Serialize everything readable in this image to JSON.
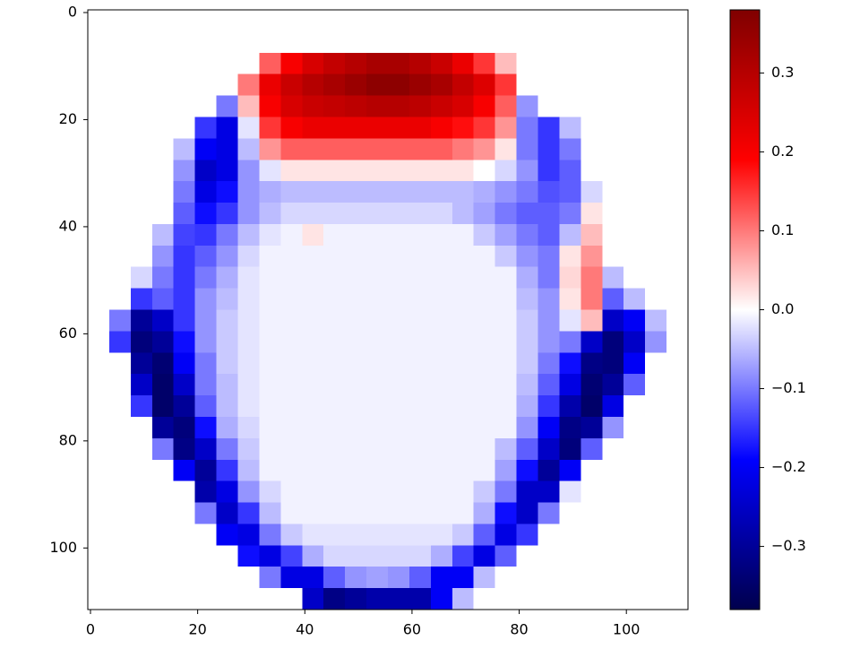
{
  "chart_data": {
    "type": "heatmap",
    "colormap": "seismic",
    "xlim": [
      -0.5,
      111.5
    ],
    "ylim": [
      111.5,
      -0.5
    ],
    "xticks": [
      0,
      20,
      40,
      60,
      80,
      100
    ],
    "yticks": [
      0,
      20,
      40,
      60,
      80,
      100
    ],
    "x_edges": [
      -0.5,
      3.5,
      7.5,
      11.5,
      15.5,
      19.5,
      23.5,
      27.5,
      31.5,
      35.5,
      39.5,
      43.5,
      47.5,
      51.5,
      55.5,
      59.5,
      63.5,
      67.5,
      71.5,
      75.5,
      79.5,
      83.5,
      87.5,
      91.5,
      95.5,
      99.5,
      103.5,
      107.5,
      111.5
    ],
    "y_edges": [
      -0.5,
      3.5,
      7.5,
      11.5,
      15.5,
      19.5,
      23.5,
      27.5,
      31.5,
      35.5,
      39.5,
      43.5,
      47.5,
      51.5,
      55.5,
      59.5,
      63.5,
      67.5,
      71.5,
      75.5,
      79.5,
      83.5,
      87.5,
      91.5,
      95.5,
      99.5,
      103.5,
      107.5,
      111.5
    ],
    "clim": [
      -0.38,
      0.38
    ],
    "colorbar_ticks": [
      {
        "value": -0.3,
        "label": "−0.3"
      },
      {
        "value": -0.2,
        "label": "−0.2"
      },
      {
        "value": -0.1,
        "label": "−0.1"
      },
      {
        "value": 0,
        "label": "0.0"
      },
      0.1,
      0.2,
      0.3
    ],
    "z": [
      [
        0,
        0,
        0,
        0,
        0,
        0,
        0,
        0,
        0,
        0,
        0,
        0,
        0,
        0,
        0,
        0,
        0,
        0,
        0,
        0,
        0,
        0,
        0,
        0,
        0,
        0,
        0,
        0
      ],
      [
        0,
        0,
        0,
        0,
        0,
        0,
        0,
        0,
        0,
        0,
        0,
        0,
        0,
        0,
        0,
        0,
        0,
        0,
        0,
        0,
        0,
        0,
        0,
        0,
        0,
        0,
        0,
        0
      ],
      [
        0,
        0,
        0,
        0,
        0,
        0,
        0,
        0,
        0.12,
        0.2,
        0.25,
        0.28,
        0.3,
        0.32,
        0.32,
        0.3,
        0.27,
        0.22,
        0.15,
        0.05,
        0,
        0,
        0,
        0,
        0,
        0,
        0,
        0
      ],
      [
        0,
        0,
        0,
        0,
        0,
        0,
        0,
        0.1,
        0.22,
        0.27,
        0.3,
        0.32,
        0.34,
        0.36,
        0.36,
        0.34,
        0.32,
        0.28,
        0.24,
        0.15,
        0,
        0,
        0,
        0,
        0,
        0,
        0,
        0
      ],
      [
        0,
        0,
        0,
        0,
        0,
        0,
        -0.1,
        0.05,
        0.2,
        0.25,
        0.27,
        0.28,
        0.29,
        0.3,
        0.3,
        0.29,
        0.27,
        0.25,
        0.2,
        0.12,
        -0.08,
        0,
        0,
        0,
        0,
        0,
        0,
        0
      ],
      [
        0,
        0,
        0,
        0,
        0,
        -0.15,
        -0.22,
        -0.02,
        0.15,
        0.2,
        0.22,
        0.22,
        0.22,
        0.22,
        0.22,
        0.22,
        0.2,
        0.18,
        0.15,
        0.08,
        -0.1,
        -0.15,
        -0.05,
        0,
        0,
        0,
        0,
        0
      ],
      [
        0,
        0,
        0,
        0,
        -0.05,
        -0.2,
        -0.22,
        -0.05,
        0.08,
        0.12,
        0.12,
        0.12,
        0.12,
        0.12,
        0.12,
        0.12,
        0.12,
        0.1,
        0.08,
        0.02,
        -0.1,
        -0.15,
        -0.1,
        0,
        0,
        0,
        0,
        0
      ],
      [
        0,
        0,
        0,
        0,
        -0.08,
        -0.25,
        -0.22,
        -0.08,
        -0.02,
        0.02,
        0.02,
        0.02,
        0.02,
        0.02,
        0.02,
        0.02,
        0.02,
        0.02,
        0,
        -0.03,
        -0.08,
        -0.15,
        -0.12,
        0,
        0,
        0,
        0,
        0
      ],
      [
        0,
        0,
        0,
        0,
        -0.1,
        -0.22,
        -0.18,
        -0.08,
        -0.06,
        -0.05,
        -0.05,
        -0.05,
        -0.05,
        -0.05,
        -0.05,
        -0.05,
        -0.05,
        -0.05,
        -0.06,
        -0.08,
        -0.1,
        -0.13,
        -0.12,
        -0.03,
        0,
        0,
        0,
        0
      ],
      [
        0,
        0,
        0,
        0,
        -0.12,
        -0.18,
        -0.15,
        -0.08,
        -0.05,
        -0.03,
        -0.03,
        -0.03,
        -0.03,
        -0.03,
        -0.03,
        -0.03,
        -0.03,
        -0.05,
        -0.07,
        -0.1,
        -0.12,
        -0.12,
        -0.1,
        0.02,
        0,
        0,
        0,
        0
      ],
      [
        0,
        0,
        0,
        -0.05,
        -0.14,
        -0.15,
        -0.1,
        -0.05,
        -0.02,
        -0.01,
        0.02,
        -0.01,
        -0.01,
        -0.01,
        -0.01,
        -0.01,
        -0.01,
        -0.01,
        -0.04,
        -0.07,
        -0.1,
        -0.12,
        -0.05,
        0.05,
        0,
        0,
        0,
        0
      ],
      [
        0,
        0,
        0,
        -0.08,
        -0.15,
        -0.12,
        -0.08,
        -0.03,
        -0.01,
        -0.01,
        -0.01,
        -0.01,
        -0.01,
        -0.01,
        -0.01,
        -0.01,
        -0.01,
        -0.01,
        -0.01,
        -0.04,
        -0.08,
        -0.1,
        0.02,
        0.08,
        0,
        0,
        0,
        0
      ],
      [
        0,
        0,
        -0.03,
        -0.1,
        -0.15,
        -0.1,
        -0.06,
        -0.02,
        -0.01,
        -0.01,
        -0.01,
        -0.01,
        -0.01,
        -0.01,
        -0.01,
        -0.01,
        -0.01,
        -0.01,
        -0.01,
        -0.01,
        -0.06,
        -0.1,
        0.03,
        0.1,
        -0.05,
        0,
        0,
        0
      ],
      [
        0,
        0,
        -0.15,
        -0.12,
        -0.15,
        -0.08,
        -0.05,
        -0.02,
        -0.01,
        -0.01,
        -0.01,
        -0.01,
        -0.01,
        -0.01,
        -0.01,
        -0.01,
        -0.01,
        -0.01,
        -0.01,
        -0.01,
        -0.05,
        -0.08,
        0.02,
        0.1,
        -0.12,
        -0.05,
        0,
        0
      ],
      [
        0,
        -0.1,
        -0.3,
        -0.25,
        -0.15,
        -0.08,
        -0.04,
        -0.02,
        -0.01,
        -0.01,
        -0.01,
        -0.01,
        -0.01,
        -0.01,
        -0.01,
        -0.01,
        -0.01,
        -0.01,
        -0.01,
        -0.01,
        -0.04,
        -0.08,
        -0.02,
        0.05,
        -0.25,
        -0.2,
        -0.05,
        0
      ],
      [
        0,
        -0.15,
        -0.33,
        -0.3,
        -0.18,
        -0.08,
        -0.04,
        -0.02,
        -0.01,
        -0.01,
        -0.01,
        -0.01,
        -0.01,
        -0.01,
        -0.01,
        -0.01,
        -0.01,
        -0.01,
        -0.01,
        -0.01,
        -0.04,
        -0.08,
        -0.1,
        -0.25,
        -0.33,
        -0.25,
        -0.08,
        0
      ],
      [
        0,
        0,
        -0.3,
        -0.34,
        -0.2,
        -0.1,
        -0.04,
        -0.02,
        -0.01,
        -0.01,
        -0.01,
        -0.01,
        -0.01,
        -0.01,
        -0.01,
        -0.01,
        -0.01,
        -0.01,
        -0.01,
        -0.01,
        -0.04,
        -0.1,
        -0.18,
        -0.32,
        -0.33,
        -0.2,
        0,
        0
      ],
      [
        0,
        0,
        -0.25,
        -0.35,
        -0.25,
        -0.1,
        -0.05,
        -0.02,
        -0.01,
        -0.01,
        -0.01,
        -0.01,
        -0.01,
        -0.01,
        -0.01,
        -0.01,
        -0.01,
        -0.01,
        -0.01,
        -0.01,
        -0.05,
        -0.12,
        -0.22,
        -0.34,
        -0.3,
        -0.12,
        0,
        0
      ],
      [
        0,
        0,
        -0.15,
        -0.35,
        -0.3,
        -0.12,
        -0.05,
        -0.02,
        -0.01,
        -0.01,
        -0.01,
        -0.01,
        -0.01,
        -0.01,
        -0.01,
        -0.01,
        -0.01,
        -0.01,
        -0.01,
        -0.01,
        -0.06,
        -0.15,
        -0.28,
        -0.35,
        -0.22,
        0,
        0,
        0
      ],
      [
        0,
        0,
        0,
        -0.3,
        -0.33,
        -0.18,
        -0.06,
        -0.03,
        -0.01,
        -0.01,
        -0.01,
        -0.01,
        -0.01,
        -0.01,
        -0.01,
        -0.01,
        -0.01,
        -0.01,
        -0.01,
        -0.01,
        -0.08,
        -0.2,
        -0.32,
        -0.3,
        -0.08,
        0,
        0,
        0
      ],
      [
        0,
        0,
        0,
        -0.1,
        -0.32,
        -0.25,
        -0.1,
        -0.04,
        -0.01,
        -0.01,
        -0.01,
        -0.01,
        -0.01,
        -0.01,
        -0.01,
        -0.01,
        -0.01,
        -0.01,
        -0.01,
        -0.05,
        -0.12,
        -0.25,
        -0.33,
        -0.12,
        0,
        0,
        0,
        0
      ],
      [
        0,
        0,
        0,
        0,
        -0.2,
        -0.3,
        -0.15,
        -0.05,
        -0.01,
        -0.01,
        -0.01,
        -0.01,
        -0.01,
        -0.01,
        -0.01,
        -0.01,
        -0.01,
        -0.01,
        -0.01,
        -0.07,
        -0.18,
        -0.3,
        -0.2,
        0,
        0,
        0,
        0,
        0
      ],
      [
        0,
        0,
        0,
        0,
        0,
        -0.28,
        -0.22,
        -0.08,
        -0.03,
        -0.01,
        -0.01,
        -0.01,
        -0.01,
        -0.01,
        -0.01,
        -0.01,
        -0.01,
        -0.01,
        -0.04,
        -0.1,
        -0.25,
        -0.25,
        -0.02,
        0,
        0,
        0,
        0,
        0
      ],
      [
        0,
        0,
        0,
        0,
        0,
        -0.1,
        -0.25,
        -0.15,
        -0.05,
        -0.01,
        -0.01,
        -0.01,
        -0.01,
        -0.01,
        -0.01,
        -0.01,
        -0.01,
        -0.01,
        -0.06,
        -0.18,
        -0.25,
        -0.1,
        0,
        0,
        0,
        0,
        0,
        0
      ],
      [
        0,
        0,
        0,
        0,
        0,
        0,
        -0.2,
        -0.22,
        -0.1,
        -0.04,
        -0.02,
        -0.02,
        -0.02,
        -0.02,
        -0.02,
        -0.02,
        -0.02,
        -0.04,
        -0.12,
        -0.22,
        -0.15,
        0,
        0,
        0,
        0,
        0,
        0,
        0
      ],
      [
        0,
        0,
        0,
        0,
        0,
        0,
        0,
        -0.18,
        -0.22,
        -0.14,
        -0.06,
        -0.03,
        -0.03,
        -0.03,
        -0.03,
        -0.03,
        -0.06,
        -0.14,
        -0.22,
        -0.12,
        0,
        0,
        0,
        0,
        0,
        0,
        0,
        0
      ],
      [
        0,
        0,
        0,
        0,
        0,
        0,
        0,
        0,
        -0.1,
        -0.22,
        -0.22,
        -0.12,
        -0.08,
        -0.07,
        -0.08,
        -0.12,
        -0.2,
        -0.2,
        -0.05,
        0,
        0,
        0,
        0,
        0,
        0,
        0,
        0,
        0
      ],
      [
        0,
        0,
        0,
        0,
        0,
        0,
        0,
        0,
        0,
        0,
        -0.25,
        -0.32,
        -0.3,
        -0.28,
        -0.28,
        -0.28,
        -0.2,
        -0.05,
        0,
        0,
        0,
        0,
        0,
        0,
        0,
        0,
        0,
        0
      ]
    ]
  }
}
